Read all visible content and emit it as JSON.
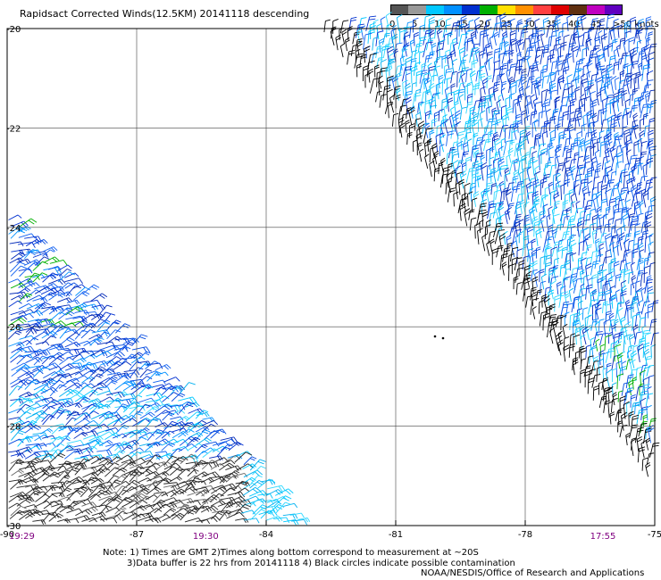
{
  "title": "Rapidsact Corrected Winds(12.5KM) 20141118 descending",
  "colorbar": {
    "labels": [
      "0",
      "5",
      "10",
      "15",
      "20",
      "25",
      "30",
      "35",
      "40",
      "45",
      ">50 knots"
    ],
    "colors": [
      "#555555",
      "#999999",
      "#00c8ff",
      "#0090ff",
      "#0030d0",
      "#00b000",
      "#ffe000",
      "#ff9000",
      "#ff4040",
      "#e00000",
      "#603010",
      "#c000c0",
      "#6000c0"
    ]
  },
  "chart_data": {
    "type": "wind-barb map",
    "x_ticks": [
      "-90",
      "-87",
      "-84",
      "-81",
      "-78",
      "-75"
    ],
    "y_ticks": [
      "-20",
      "-22",
      "-24",
      "-26",
      "-28",
      "-30"
    ],
    "xlim": [
      -90,
      -75
    ],
    "ylim": [
      -30,
      -20
    ],
    "grid": true,
    "swaths": [
      {
        "time": "19:29",
        "lon_at_bottom": -90
      },
      {
        "time": "19:30",
        "lon_at_bottom": -85.4
      },
      {
        "time": "17:55",
        "lon_at_bottom": -76.2
      }
    ],
    "time_color": "#800080"
  },
  "notes": {
    "line1": "Note: 1) Times are GMT 2)Times along bottom correspond to measurement at ~20S",
    "line2": "3)Data buffer is 22 hrs from 20141118 4) Black circles indicate possible contamination",
    "credit": "NOAA/NESDIS/Office of Research and Applications"
  }
}
